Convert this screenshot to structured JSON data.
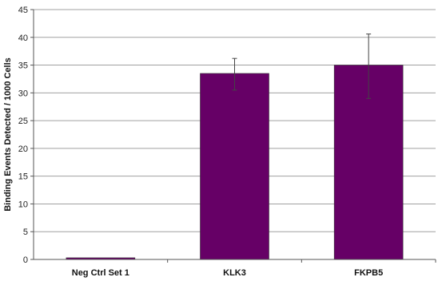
{
  "chart_data": {
    "type": "bar",
    "categories": [
      "Neg Ctrl Set 1",
      "KLK3",
      "FKPB5"
    ],
    "values": [
      0.3,
      33.5,
      35.0
    ],
    "error_low": [
      0.3,
      30.5,
      29.0
    ],
    "error_high": [
      0.3,
      36.2,
      40.6
    ],
    "ylabel": "Binding Events Detected / 1000 Cells",
    "ylim": [
      0,
      45
    ],
    "yticks": [
      0,
      5,
      10,
      15,
      20,
      25,
      30,
      35,
      40,
      45
    ],
    "ytick_labels": [
      "0",
      "5",
      "10",
      "15",
      "20",
      "25",
      "30",
      "35",
      "40",
      "45"
    ],
    "grid": true,
    "bar_color": "#660066",
    "grid_color": "#a0a0a0"
  }
}
